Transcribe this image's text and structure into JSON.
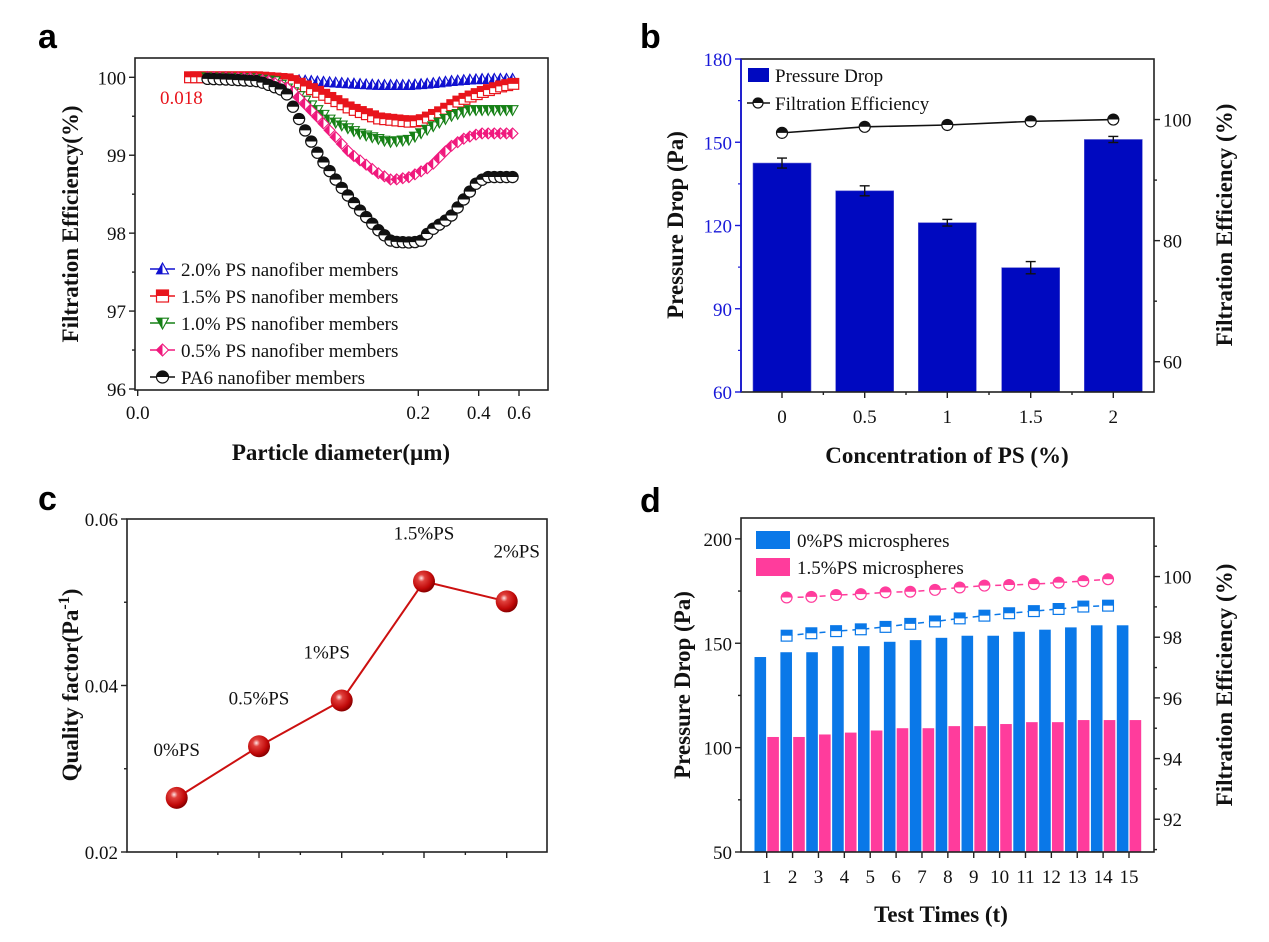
{
  "panels": {
    "a": {
      "letter": "a"
    },
    "b": {
      "letter": "b"
    },
    "c": {
      "letter": "c"
    },
    "d": {
      "letter": "d"
    }
  },
  "chart_data": [
    {
      "id": "a",
      "type": "scatter",
      "title": "",
      "xlabel": "Particle diameter(µm)",
      "ylabel": "Filtration Efficiency(%)",
      "xscale": "nonlinear",
      "xticks": [
        0.0,
        0.2,
        0.4,
        0.6
      ],
      "xtick_labels": [
        "0.0",
        "0.2",
        "0.4",
        "0.6"
      ],
      "yticks": [
        96,
        97,
        98,
        99,
        100
      ],
      "ytick_labels": [
        "96",
        "97",
        "98",
        "99",
        "100"
      ],
      "ylim": [
        96,
        100.25
      ],
      "annotation": {
        "text": "0.018",
        "color": "#e8141c"
      },
      "legend_position": "bottom-left",
      "series": [
        {
          "name": "2.0% PS nanofiber members",
          "color": "#1010d0",
          "marker": "triangle-up",
          "x": [
            0.032,
            0.072,
            0.106,
            0.146,
            0.169,
            0.193,
            0.239,
            0.305,
            0.371,
            0.441,
            0.506,
            0.58
          ],
          "y": [
            100.0,
            99.99,
            99.96,
            99.92,
            99.9,
            99.9,
            99.92,
            99.95,
            99.97,
            99.98,
            99.98,
            99.98
          ]
        },
        {
          "name": "1.5% PS nanofiber members",
          "color": "#e8141c",
          "marker": "square",
          "x": [
            0.018,
            0.032,
            0.072,
            0.098,
            0.122,
            0.146,
            0.169,
            0.193,
            0.206,
            0.272,
            0.338,
            0.406,
            0.506,
            0.58
          ],
          "y": [
            100.0,
            100.0,
            100.0,
            99.97,
            99.8,
            99.6,
            99.47,
            99.43,
            99.44,
            99.55,
            99.7,
            99.8,
            99.88,
            99.92
          ]
        },
        {
          "name": "1.0% PS nanofiber members",
          "color": "#168016",
          "marker": "triangle-down",
          "x": [
            0.032,
            0.066,
            0.086,
            0.106,
            0.13,
            0.153,
            0.177,
            0.193,
            0.239,
            0.305,
            0.371,
            0.441,
            0.58
          ],
          "y": [
            100.0,
            99.99,
            99.95,
            99.75,
            99.45,
            99.28,
            99.17,
            99.2,
            99.35,
            99.5,
            99.58,
            99.58,
            99.58
          ]
        },
        {
          "name": "0.5% PS nanofiber members",
          "color": "#f0197d",
          "marker": "diamond",
          "x": [
            0.032,
            0.066,
            0.082,
            0.098,
            0.122,
            0.146,
            0.168,
            0.179,
            0.193,
            0.239,
            0.305,
            0.354,
            0.406,
            0.58
          ],
          "y": [
            100.0,
            99.99,
            99.95,
            99.85,
            99.45,
            99.02,
            98.77,
            98.68,
            98.72,
            98.85,
            99.11,
            99.22,
            99.28,
            99.28
          ]
        },
        {
          "name": "PA6  nanofiber members",
          "color": "#111111",
          "marker": "circle",
          "x": [
            0.032,
            0.05,
            0.072,
            0.078,
            0.094,
            0.106,
            0.122,
            0.138,
            0.153,
            0.168,
            0.179,
            0.193,
            0.206,
            0.239,
            0.305,
            0.354,
            0.394,
            0.441,
            0.58
          ],
          "y": [
            99.98,
            99.97,
            99.95,
            99.92,
            99.82,
            99.43,
            98.96,
            98.6,
            98.3,
            98.04,
            97.89,
            97.88,
            97.89,
            98.03,
            98.2,
            98.45,
            98.65,
            98.72,
            98.72
          ]
        }
      ]
    },
    {
      "id": "b",
      "type": "bar",
      "title": "",
      "xlabel": "Concentration of PS (%)",
      "ylabel": "Pressure Drop (Pa)",
      "y2label": "Filtration Efficiency (%)",
      "categories": [
        "0",
        "0.5",
        "1",
        "1.5",
        "2"
      ],
      "ylim": [
        60,
        180
      ],
      "yticks": [
        60,
        90,
        120,
        150,
        180
      ],
      "ytick_labels": [
        "60",
        "90",
        "120",
        "150",
        "180"
      ],
      "y2lim": [
        55,
        110
      ],
      "y2ticks": [
        60,
        80,
        100
      ],
      "y2tick_labels": [
        "60",
        "80",
        "100"
      ],
      "ylabel_color": "#1818d8",
      "legend_position": "top-left",
      "series": [
        {
          "name": "Pressure Drop",
          "type": "bar",
          "axis": "left",
          "color": "#0009c0",
          "values": [
            142.5,
            132.5,
            121.0,
            104.8,
            151.0
          ],
          "errors": [
            1.8,
            1.8,
            1.2,
            2.2,
            1.1
          ]
        },
        {
          "name": "Filtration Efficiency",
          "type": "line",
          "axis": "right",
          "color": "#111111",
          "marker": "half-circle",
          "values": [
            97.8,
            98.8,
            99.1,
            99.7,
            100.0
          ]
        }
      ]
    },
    {
      "id": "c",
      "type": "line",
      "title": "",
      "xlabel": "",
      "ylabel": "Quality factor(Pa⁻¹)",
      "ylabel_main": "Quality factor(Pa",
      "ylabel_sup": "-1",
      "ylabel_tail": ")",
      "categories": [
        "0%PS",
        "0.5%PS",
        "1%PS",
        "1.5%PS",
        "2%PS"
      ],
      "ylim": [
        0.02,
        0.06
      ],
      "yticks": [
        0.02,
        0.04,
        0.06
      ],
      "ytick_labels": [
        "0.02",
        "0.04",
        "0.06"
      ],
      "color": "#cc1010",
      "series": [
        {
          "name": "Quality factor",
          "values": [
            0.0265,
            0.0327,
            0.0382,
            0.0525,
            0.0501
          ],
          "errors": [
            0.0006,
            0.0006,
            0.0008,
            0.0008,
            0.0005
          ],
          "point_labels": [
            "0%PS",
            "0.5%PS",
            "1%PS",
            "1.5%PS",
            "2%PS"
          ]
        }
      ]
    },
    {
      "id": "d",
      "type": "bar",
      "title": "",
      "xlabel": "Test Times (t)",
      "ylabel": "Pressure Drop (Pa)",
      "y2label": "Filtration Efficiency (%)",
      "categories": [
        "1",
        "2",
        "3",
        "4",
        "5",
        "6",
        "7",
        "8",
        "9",
        "10",
        "11",
        "12",
        "13",
        "14",
        "15"
      ],
      "ylim": [
        50,
        210
      ],
      "yticks": [
        50,
        100,
        150,
        200
      ],
      "ytick_labels": [
        "50",
        "100",
        "150",
        "200"
      ],
      "y2lim": [
        90.92,
        101.93
      ],
      "y2ticks": [
        92,
        94,
        96,
        98,
        100
      ],
      "y2tick_labels": [
        "92",
        "94",
        "96",
        "98",
        "100"
      ],
      "legend_position": "top-left",
      "series": [
        {
          "name": "0%PS microspheres",
          "type": "bar",
          "axis": "left",
          "color": "#0a78e8",
          "values": [
            143.4,
            145.7,
            145.7,
            148.6,
            148.6,
            150.7,
            151.5,
            152.6,
            153.6,
            153.6,
            155.5,
            156.5,
            157.6,
            158.6,
            158.6
          ]
        },
        {
          "name": "1.5%PS microspheres",
          "type": "bar",
          "axis": "left",
          "color": "#ff3c9c",
          "values": [
            105.1,
            105.1,
            106.3,
            107.2,
            108.2,
            109.3,
            109.3,
            110.3,
            110.3,
            111.3,
            112.2,
            112.2,
            113.2,
            113.2,
            113.2
          ]
        },
        {
          "name": "0%PS microspheres filtration efficiency",
          "type": "line",
          "axis": "right",
          "color": "#0a78e8",
          "marker": "half-square",
          "dashed": true,
          "x_start": 1.77,
          "x_end": 14.19,
          "values": [
            98.05,
            98.13,
            98.2,
            98.26,
            98.34,
            98.44,
            98.52,
            98.62,
            98.71,
            98.79,
            98.86,
            98.93,
            99.01,
            99.04
          ]
        },
        {
          "name": "1.5%PS microspheres filtration efficiency",
          "type": "line",
          "axis": "right",
          "color": "#ff3c9c",
          "marker": "half-circle",
          "dashed": true,
          "x_start": 1.77,
          "x_end": 14.19,
          "values": [
            99.31,
            99.33,
            99.39,
            99.42,
            99.48,
            99.5,
            99.56,
            99.64,
            99.7,
            99.72,
            99.75,
            99.8,
            99.85,
            99.91
          ]
        }
      ]
    }
  ]
}
